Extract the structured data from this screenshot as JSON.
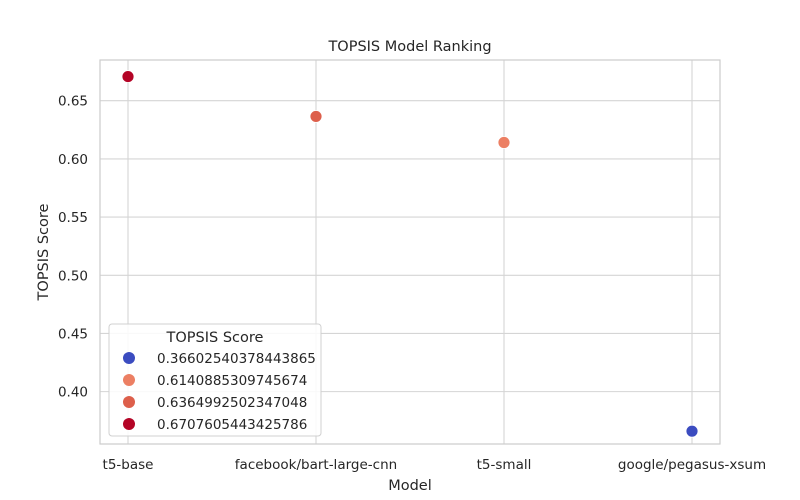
{
  "chart_data": {
    "type": "scatter",
    "title": "TOPSIS Model Ranking",
    "xlabel": "Model",
    "ylabel": "TOPSIS Score",
    "categories": [
      "t5-base",
      "facebook/bart-large-cnn",
      "t5-small",
      "google/pegasus-xsum"
    ],
    "values": [
      0.6707605443425786,
      0.6364992502347048,
      0.6140885309745674,
      0.36602540378443865
    ],
    "point_colors": [
      "#b40426",
      "#dd5f4b",
      "#ec7f63",
      "#3b4cc0"
    ],
    "ylim": [
      0.355,
      0.685
    ],
    "yticks": [
      0.4,
      0.45,
      0.5,
      0.55,
      0.6,
      0.65
    ],
    "ytick_labels": [
      "0.40",
      "0.45",
      "0.50",
      "0.55",
      "0.60",
      "0.65"
    ],
    "grid": true,
    "legend": {
      "title": "TOPSIS Score",
      "placement": "lower-left",
      "entries": [
        {
          "label": "0.36602540378443865",
          "color": "#3b4cc0"
        },
        {
          "label": "0.6140885309745674",
          "color": "#ec7f63"
        },
        {
          "label": "0.6364992502347048",
          "color": "#dd5f4b"
        },
        {
          "label": "0.6707605443425786",
          "color": "#b40426"
        }
      ]
    }
  }
}
